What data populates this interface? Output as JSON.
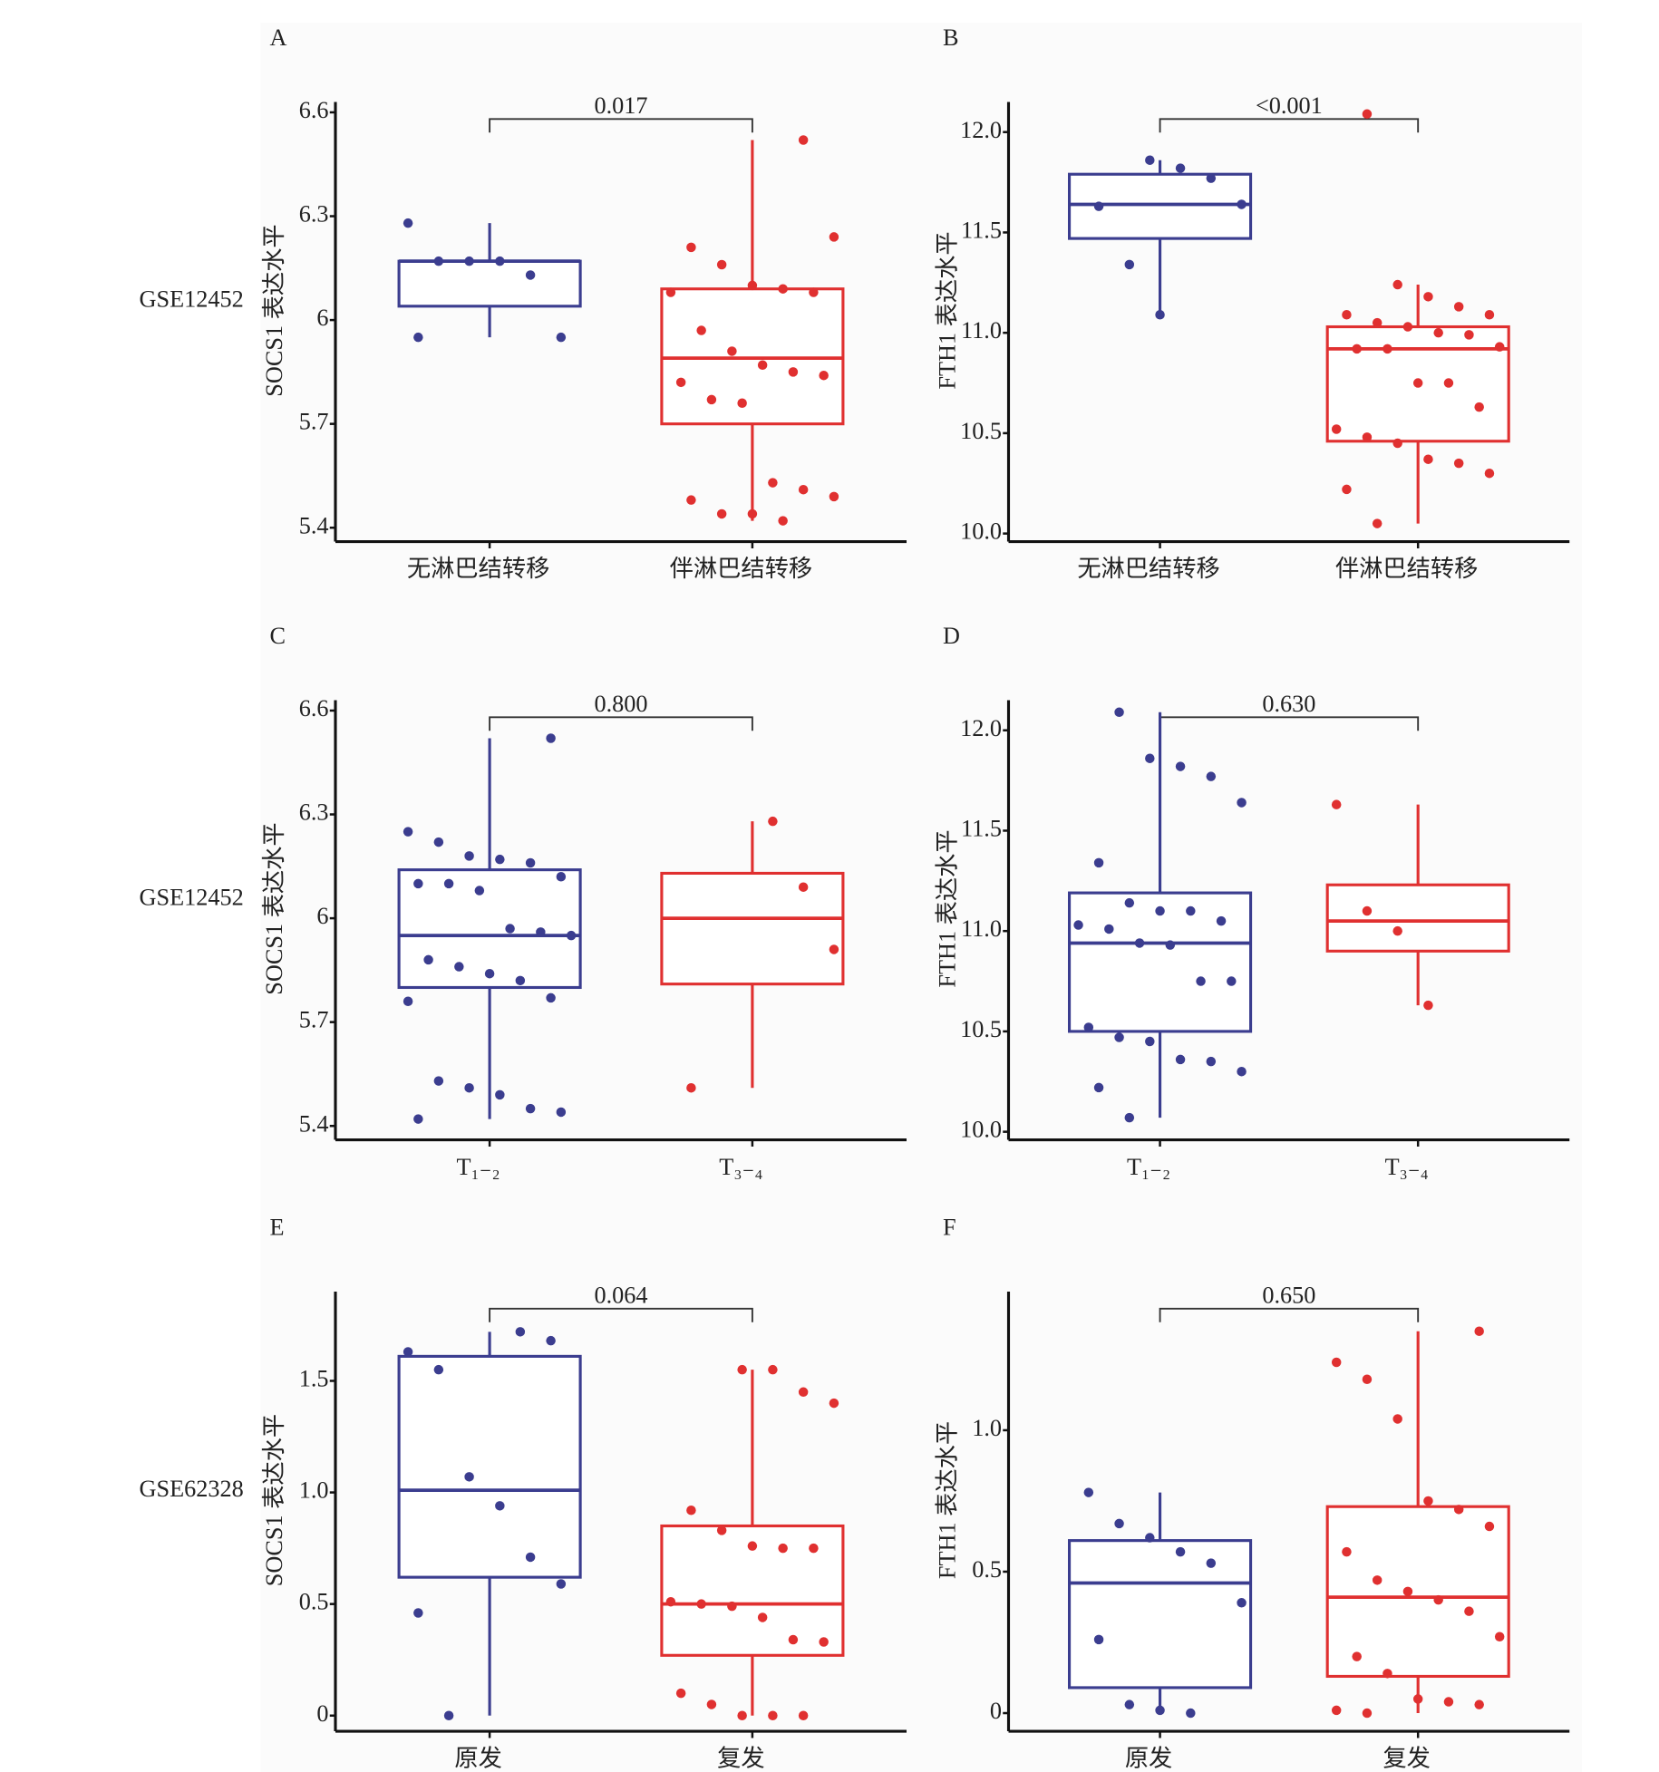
{
  "row_labels": [
    "GSE12452",
    "GSE12452",
    "GSE62328"
  ],
  "chart_data": [
    {
      "type": "box",
      "label": "A",
      "ylabel": "SOCS1 表达水平",
      "annotation": "0.017",
      "categories": [
        "无淋巴结转移",
        "伴淋巴结转移"
      ],
      "ylim": [
        5.36,
        6.63
      ],
      "yticks": [
        5.4,
        5.7,
        6.0,
        6.3,
        6.6
      ],
      "series": [
        {
          "color": "#3b3d8f",
          "whisker_low": 5.95,
          "q1": 6.04,
          "median": 6.17,
          "q3": 6.17,
          "whisker_high": 6.28,
          "points": [
            6.28,
            6.17,
            6.17,
            6.17,
            6.13,
            5.95,
            5.95
          ]
        },
        {
          "color": "#e03030",
          "whisker_low": 5.42,
          "q1": 5.7,
          "median": 5.89,
          "q3": 6.09,
          "whisker_high": 6.52,
          "points": [
            6.52,
            6.24,
            6.21,
            6.16,
            6.1,
            6.09,
            6.08,
            6.08,
            5.97,
            5.91,
            5.87,
            5.85,
            5.84,
            5.82,
            5.77,
            5.76,
            5.53,
            5.51,
            5.49,
            5.48,
            5.44,
            5.44,
            5.42
          ]
        }
      ]
    },
    {
      "type": "box",
      "label": "B",
      "ylabel": "FTH1 表达水平",
      "annotation": "<0.001",
      "categories": [
        "无淋巴结转移",
        "伴淋巴结转移"
      ],
      "ylim": [
        9.96,
        12.15
      ],
      "yticks": [
        {
          "value": 10,
          "label": "10.0"
        },
        10.5,
        {
          "value": 11,
          "label": "11.0"
        },
        11.5,
        {
          "value": 12,
          "label": "12.0"
        }
      ],
      "series": [
        {
          "color": "#3b3d8f",
          "whisker_low": 11.09,
          "q1": 11.47,
          "median": 11.64,
          "q3": 11.79,
          "whisker_high": 11.86,
          "points": [
            11.86,
            11.82,
            11.77,
            11.64,
            11.63,
            11.34,
            11.09
          ]
        },
        {
          "color": "#e03030",
          "whisker_low": 10.05,
          "q1": 10.46,
          "median": 10.92,
          "q3": 11.03,
          "whisker_high": 11.24,
          "points": [
            12.09,
            11.24,
            11.18,
            11.13,
            11.09,
            11.09,
            11.05,
            11.03,
            11.0,
            10.99,
            10.93,
            10.92,
            10.92,
            10.75,
            10.75,
            10.63,
            10.52,
            10.48,
            10.45,
            10.37,
            10.35,
            10.3,
            10.22,
            10.05
          ]
        }
      ]
    },
    {
      "type": "box",
      "label": "C",
      "ylabel": "SOCS1 表达水平",
      "annotation": "0.800",
      "categories": [
        "T₁₋₂",
        "T₃₋₄"
      ],
      "ylim": [
        5.36,
        6.63
      ],
      "yticks": [
        5.4,
        5.7,
        6.0,
        6.3,
        6.6
      ],
      "series": [
        {
          "color": "#3b3d8f",
          "whisker_low": 5.42,
          "q1": 5.8,
          "median": 5.95,
          "q3": 6.14,
          "whisker_high": 6.52,
          "points": [
            6.52,
            6.25,
            6.22,
            6.18,
            6.17,
            6.16,
            6.12,
            6.1,
            6.1,
            6.08,
            5.97,
            5.96,
            5.95,
            5.88,
            5.86,
            5.84,
            5.82,
            5.77,
            5.76,
            5.53,
            5.51,
            5.49,
            5.45,
            5.44,
            5.42
          ]
        },
        {
          "color": "#e03030",
          "whisker_low": 5.51,
          "q1": 5.81,
          "median": 6.0,
          "q3": 6.13,
          "whisker_high": 6.28,
          "points": [
            6.28,
            6.09,
            5.91,
            5.51
          ]
        }
      ]
    },
    {
      "type": "box",
      "label": "D",
      "ylabel": "FTH1 表达水平",
      "annotation": "0.630",
      "categories": [
        "T₁₋₂",
        "T₃₋₄"
      ],
      "ylim": [
        9.96,
        12.15
      ],
      "yticks": [
        {
          "value": 10,
          "label": "10.0"
        },
        10.5,
        {
          "value": 11,
          "label": "11.0"
        },
        11.5,
        {
          "value": 12,
          "label": "12.0"
        }
      ],
      "series": [
        {
          "color": "#3b3d8f",
          "whisker_low": 10.07,
          "q1": 10.5,
          "median": 10.94,
          "q3": 11.19,
          "whisker_high": 12.09,
          "points": [
            12.09,
            11.86,
            11.82,
            11.77,
            11.64,
            11.34,
            11.14,
            11.1,
            11.1,
            11.05,
            11.03,
            11.01,
            10.94,
            10.93,
            10.75,
            10.75,
            10.52,
            10.47,
            10.45,
            10.36,
            10.35,
            10.3,
            10.22,
            10.07
          ]
        },
        {
          "color": "#e03030",
          "whisker_low": 10.63,
          "q1": 10.9,
          "median": 11.05,
          "q3": 11.23,
          "whisker_high": 11.63,
          "points": [
            11.63,
            11.1,
            11.0,
            10.63
          ]
        }
      ]
    },
    {
      "type": "box",
      "label": "E",
      "ylabel": "SOCS1 表达水平",
      "annotation": "0.064",
      "categories": [
        "原发",
        "复发"
      ],
      "ylim": [
        -0.07,
        1.9
      ],
      "yticks": [
        0,
        0.5,
        {
          "value": 1,
          "label": "1.0"
        },
        1.5
      ],
      "series": [
        {
          "color": "#3b3d8f",
          "whisker_low": 0,
          "q1": 0.62,
          "median": 1.01,
          "q3": 1.61,
          "whisker_high": 1.72,
          "points": [
            1.72,
            1.68,
            1.63,
            1.55,
            1.07,
            0.94,
            0.71,
            0.59,
            0.46,
            0
          ]
        },
        {
          "color": "#e03030",
          "whisker_low": 0,
          "q1": 0.27,
          "median": 0.5,
          "q3": 0.85,
          "whisker_high": 1.55,
          "points": [
            1.55,
            1.55,
            1.45,
            1.4,
            0.92,
            0.83,
            0.76,
            0.75,
            0.75,
            0.51,
            0.5,
            0.49,
            0.44,
            0.34,
            0.33,
            0.1,
            0.05,
            0,
            0,
            0
          ]
        }
      ]
    },
    {
      "type": "box",
      "label": "F",
      "ylabel": "FTH1 表达水平",
      "annotation": "0.650",
      "categories": [
        "原发",
        "复发"
      ],
      "ylim": [
        -0.064,
        1.49
      ],
      "yticks": [
        0,
        0.5,
        {
          "value": 1,
          "label": "1.0"
        }
      ],
      "series": [
        {
          "color": "#3b3d8f",
          "whisker_low": 0,
          "q1": 0.09,
          "median": 0.46,
          "q3": 0.61,
          "whisker_high": 0.78,
          "points": [
            0.78,
            0.67,
            0.62,
            0.57,
            0.53,
            0.39,
            0.26,
            0.03,
            0.01,
            0
          ]
        },
        {
          "color": "#e03030",
          "whisker_low": 0,
          "q1": 0.13,
          "median": 0.41,
          "q3": 0.73,
          "whisker_high": 1.35,
          "points": [
            1.35,
            1.24,
            1.18,
            1.04,
            0.75,
            0.72,
            0.66,
            0.57,
            0.47,
            0.43,
            0.4,
            0.36,
            0.27,
            0.2,
            0.14,
            0.05,
            0.04,
            0.03,
            0.01,
            0
          ]
        }
      ]
    }
  ]
}
